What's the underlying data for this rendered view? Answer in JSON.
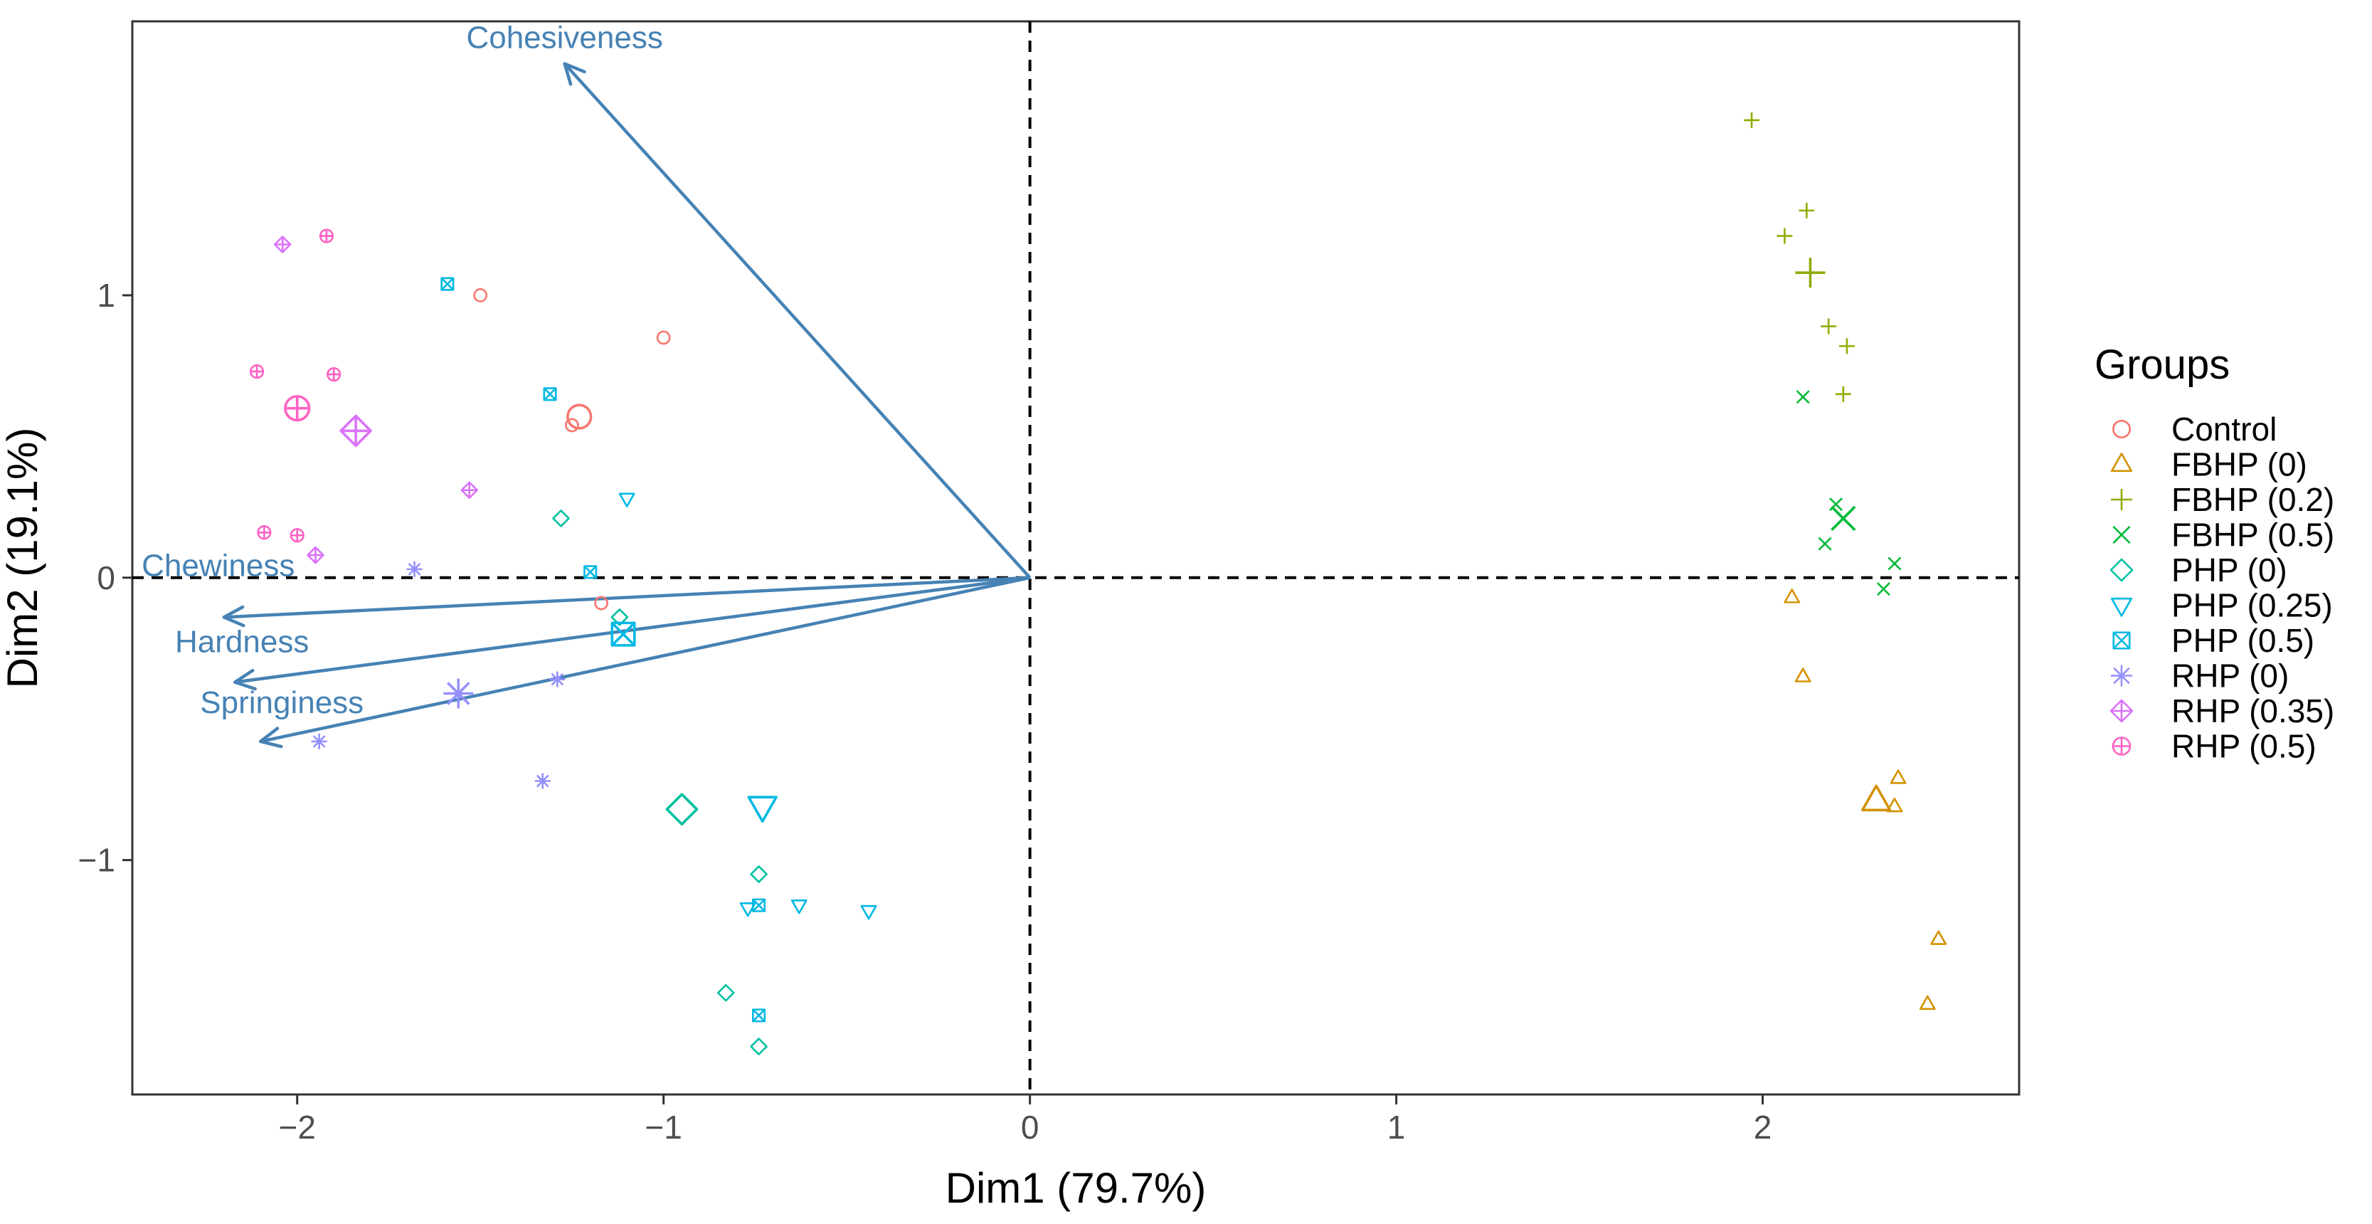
{
  "chart_data": {
    "type": "scatter",
    "subtype": "PCA biplot",
    "xlabel": "Dim1 (79.7%)",
    "ylabel": "Dim2 (19.1%)",
    "xlim": [
      -2.45,
      2.7
    ],
    "ylim": [
      -1.83,
      1.97
    ],
    "x_ticks": [
      {
        "value": -2,
        "label": "−2"
      },
      {
        "value": -1,
        "label": "−1"
      },
      {
        "value": 0,
        "label": "0"
      },
      {
        "value": 1,
        "label": "1"
      },
      {
        "value": 2,
        "label": "2"
      }
    ],
    "y_ticks": [
      {
        "value": -1,
        "label": "−1"
      },
      {
        "value": 0,
        "label": "0"
      },
      {
        "value": 1,
        "label": "1"
      }
    ],
    "grid": false,
    "reference_lines": {
      "x": 0,
      "y": 0,
      "style": "dashed"
    },
    "legend": {
      "title": "Groups",
      "position": "right",
      "entries": [
        {
          "label": "Control",
          "shape": "circle",
          "color": "#F8766D"
        },
        {
          "label": "FBHP (0)",
          "shape": "triangle",
          "color": "#D39200"
        },
        {
          "label": "FBHP (0.2)",
          "shape": "plus",
          "color": "#93AA00"
        },
        {
          "label": "FBHP (0.5)",
          "shape": "cross",
          "color": "#00BA38"
        },
        {
          "label": "PHP (0)",
          "shape": "diamond",
          "color": "#00C19F"
        },
        {
          "label": "PHP (0.25)",
          "shape": "triangle-down",
          "color": "#00B9E3"
        },
        {
          "label": "PHP (0.5)",
          "shape": "square-cross",
          "color": "#00B9E3"
        },
        {
          "label": "RHP (0)",
          "shape": "asterisk",
          "color": "#9590FF"
        },
        {
          "label": "RHP (0.35)",
          "shape": "diamond-plus",
          "color": "#DB72FB"
        },
        {
          "label": "RHP (0.5)",
          "shape": "circle-plus",
          "color": "#FF61C3"
        }
      ]
    },
    "variables": [
      {
        "name": "Cohesiveness",
        "x": -1.27,
        "y": 1.82,
        "color": "#4682B4"
      },
      {
        "name": "Chewiness",
        "x": -2.2,
        "y": -0.14,
        "color": "#4682B4"
      },
      {
        "name": "Hardness",
        "x": -2.17,
        "y": -0.37,
        "color": "#4682B4"
      },
      {
        "name": "Springiness",
        "x": -2.1,
        "y": -0.58,
        "color": "#4682B4"
      }
    ],
    "series": [
      {
        "name": "Control",
        "points": [
          [
            -1.5,
            1.0
          ],
          [
            -1.0,
            0.85
          ],
          [
            -1.25,
            0.54
          ],
          [
            -1.17,
            -0.09
          ]
        ],
        "centroid": [
          -1.23,
          0.57
        ]
      },
      {
        "name": "FBHP (0)",
        "points": [
          [
            2.08,
            -0.07
          ],
          [
            2.11,
            -0.35
          ],
          [
            2.37,
            -0.71
          ],
          [
            2.36,
            -0.81
          ],
          [
            2.48,
            -1.28
          ],
          [
            2.45,
            -1.51
          ]
        ],
        "centroid": [
          2.31,
          -0.79
        ]
      },
      {
        "name": "FBHP (0.2)",
        "points": [
          [
            1.97,
            1.62
          ],
          [
            2.12,
            1.3
          ],
          [
            2.06,
            1.21
          ],
          [
            2.18,
            0.89
          ],
          [
            2.23,
            0.82
          ],
          [
            2.22,
            0.65
          ]
        ],
        "centroid": [
          2.13,
          1.08
        ]
      },
      {
        "name": "FBHP (0.5)",
        "points": [
          [
            2.11,
            0.64
          ],
          [
            2.2,
            0.26
          ],
          [
            2.17,
            0.12
          ],
          [
            2.36,
            0.05
          ],
          [
            2.33,
            -0.04
          ]
        ],
        "centroid": [
          2.22,
          0.21
        ]
      },
      {
        "name": "PHP (0)",
        "points": [
          [
            -1.28,
            0.21
          ],
          [
            -1.12,
            -0.14
          ],
          [
            -0.74,
            -1.05
          ],
          [
            -0.83,
            -1.47
          ],
          [
            -0.74,
            -1.66
          ]
        ],
        "centroid": [
          -0.95,
          -0.82
        ]
      },
      {
        "name": "PHP (0.25)",
        "points": [
          [
            -1.1,
            0.28
          ],
          [
            -0.77,
            -1.17
          ],
          [
            -0.63,
            -1.16
          ],
          [
            -0.44,
            -1.18
          ]
        ],
        "centroid": [
          -0.73,
          -0.81
        ]
      },
      {
        "name": "PHP (0.5)",
        "points": [
          [
            -1.59,
            1.04
          ],
          [
            -1.31,
            0.65
          ],
          [
            -1.2,
            0.02
          ],
          [
            -0.74,
            -1.16
          ],
          [
            -0.74,
            -1.55
          ]
        ],
        "centroid": [
          -1.11,
          -0.2
        ]
      },
      {
        "name": "RHP (0)",
        "points": [
          [
            -1.68,
            0.03
          ],
          [
            -1.29,
            -0.36
          ],
          [
            -1.94,
            -0.58
          ],
          [
            -1.33,
            -0.72
          ]
        ],
        "centroid": [
          -1.56,
          -0.41
        ]
      },
      {
        "name": "RHP (0.35)",
        "points": [
          [
            -2.04,
            1.18
          ],
          [
            -1.53,
            0.31
          ],
          [
            -1.95,
            0.08
          ]
        ],
        "centroid": [
          -1.84,
          0.52
        ]
      },
      {
        "name": "RHP (0.5)",
        "points": [
          [
            -1.92,
            1.21
          ],
          [
            -2.11,
            0.73
          ],
          [
            -1.9,
            0.72
          ],
          [
            -2.09,
            0.16
          ],
          [
            -2.0,
            0.15
          ]
        ],
        "centroid": [
          -2.0,
          0.6
        ]
      }
    ]
  }
}
